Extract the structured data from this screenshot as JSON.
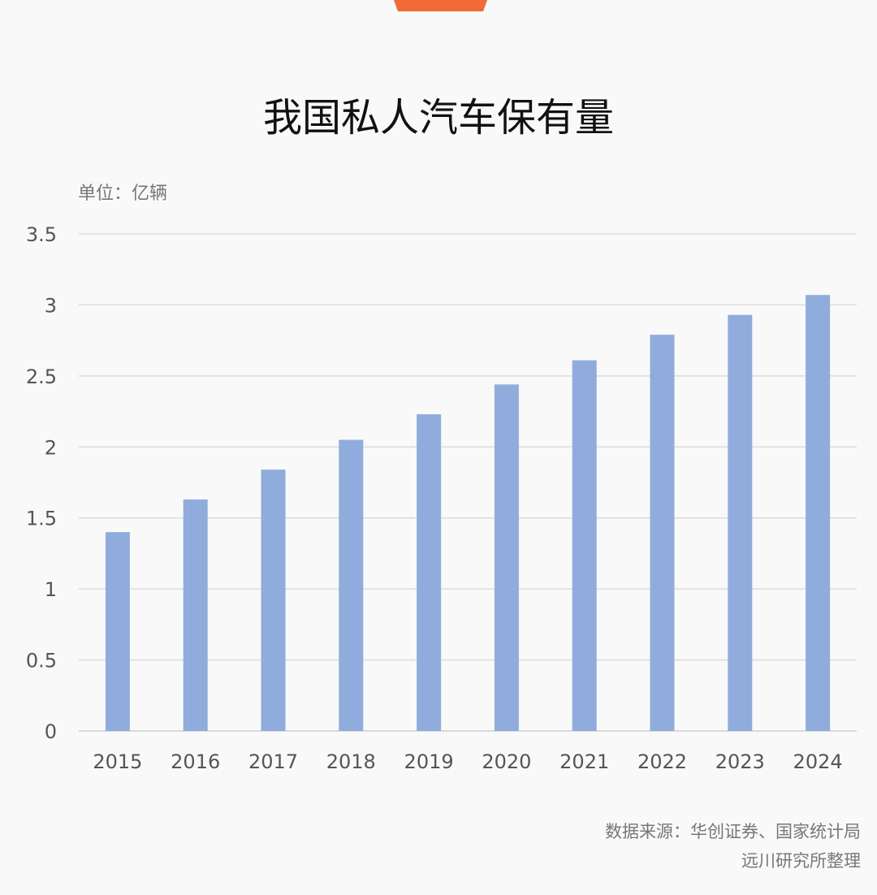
{
  "accent_color": "#f26b35",
  "bar_color": "#8facdd",
  "chart_data": {
    "type": "bar",
    "title": "我国私人汽车保有量",
    "unit_label": "单位：亿辆",
    "categories": [
      "2015",
      "2016",
      "2017",
      "2018",
      "2019",
      "2020",
      "2021",
      "2022",
      "2023",
      "2024"
    ],
    "values": [
      1.4,
      1.63,
      1.84,
      2.05,
      2.23,
      2.44,
      2.61,
      2.79,
      2.93,
      3.07
    ],
    "xlabel": "",
    "ylabel": "",
    "ylim": [
      0,
      3.5
    ],
    "yticks": [
      "0",
      "0.5",
      "1",
      "1.5",
      "2",
      "2.5",
      "3",
      "3.5"
    ],
    "grid": true,
    "legend": "none"
  },
  "source": {
    "line1": "数据来源：华创证券、国家统计局",
    "line2": "远川研究所整理"
  }
}
